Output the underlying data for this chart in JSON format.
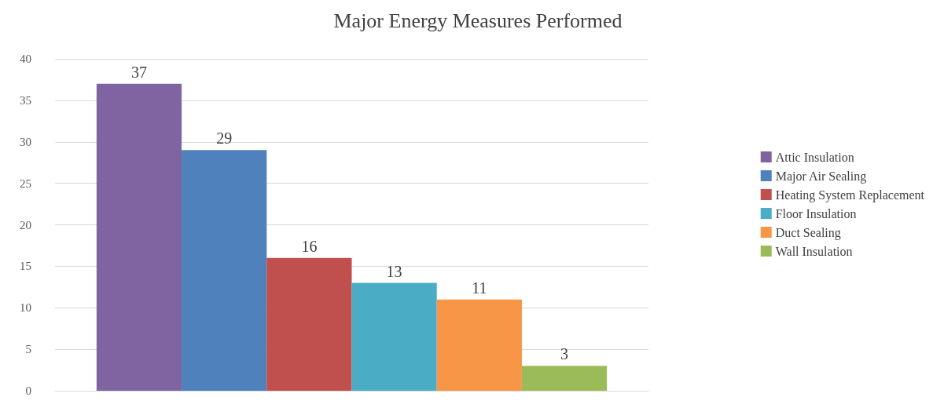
{
  "chart_data": {
    "type": "bar",
    "title": "Major Energy Measures Performed",
    "categories": [
      null
    ],
    "series": [
      {
        "name": "Attic Insulation",
        "color": "#8064a2",
        "values": [
          37
        ]
      },
      {
        "name": "Major Air Sealing",
        "color": "#4f81bd",
        "values": [
          29
        ]
      },
      {
        "name": "Heating System Replacement",
        "color": "#c0504d",
        "values": [
          16
        ]
      },
      {
        "name": "Floor Insulation",
        "color": "#4bacc6",
        "values": [
          13
        ]
      },
      {
        "name": "Duct Sealing",
        "color": "#f79646",
        "values": [
          11
        ]
      },
      {
        "name": "Wall Insulation",
        "color": "#9bbb59",
        "values": [
          3
        ]
      }
    ],
    "ylim": [
      0,
      40
    ],
    "yticks": [
      0,
      5,
      10,
      15,
      20,
      25,
      30,
      35,
      40
    ],
    "grid": "y",
    "legend": "right",
    "data_labels": true
  }
}
